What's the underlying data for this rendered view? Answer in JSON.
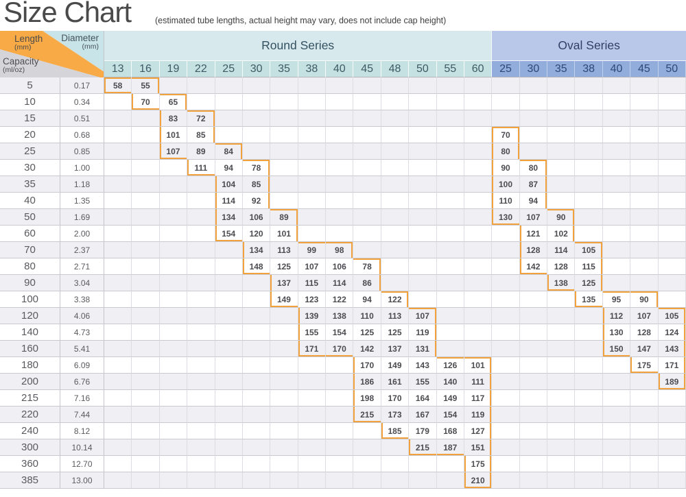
{
  "title": "Size Chart",
  "subtitle": "(estimated tube lengths, actual height may vary, does not include cap height)",
  "corner": {
    "length_label": "Length",
    "length_unit": "(mm)",
    "diameter_label": "Diameter",
    "diameter_unit": "(mm)",
    "capacity_label": "Capacity",
    "capacity_unit": "(ml/oz)"
  },
  "series": [
    {
      "name": "Round Series",
      "diameters": [
        "13",
        "16",
        "19",
        "22",
        "25",
        "30",
        "35",
        "38",
        "40",
        "45",
        "48",
        "50",
        "55",
        "60"
      ]
    },
    {
      "name": "Oval Series",
      "diameters": [
        "25",
        "30",
        "35",
        "38",
        "40",
        "45",
        "50"
      ]
    }
  ],
  "colors": {
    "outline": "#f2a23c",
    "corner_orange": "#f7aa45",
    "corner_cyan": "#c9e4e9",
    "corner_gray": "#d5d5d9"
  },
  "chart_data": {
    "type": "table",
    "title": "Size Chart",
    "note": "(estimated tube lengths, actual height may vary, does not include cap height)",
    "units": {
      "capacity": "ml/oz",
      "diameter": "mm",
      "length": "mm"
    },
    "rows": [
      {
        "ml": "5",
        "oz": "0.17",
        "round": {
          "13": 58,
          "16": 55
        },
        "oval": {}
      },
      {
        "ml": "10",
        "oz": "0.34",
        "round": {
          "16": 70,
          "19": 65
        },
        "oval": {}
      },
      {
        "ml": "15",
        "oz": "0.51",
        "round": {
          "19": 83,
          "22": 72
        },
        "oval": {}
      },
      {
        "ml": "20",
        "oz": "0.68",
        "round": {
          "19": 101,
          "22": 85
        },
        "oval": {
          "25": 70
        }
      },
      {
        "ml": "25",
        "oz": "0.85",
        "round": {
          "19": 107,
          "22": 89,
          "25": 84
        },
        "oval": {
          "25": 80
        }
      },
      {
        "ml": "30",
        "oz": "1.00",
        "round": {
          "22": 111,
          "25": 94,
          "30": 78
        },
        "oval": {
          "25": 90,
          "30": 80
        }
      },
      {
        "ml": "35",
        "oz": "1.18",
        "round": {
          "25": 104,
          "30": 85
        },
        "oval": {
          "25": 100,
          "30": 87
        }
      },
      {
        "ml": "40",
        "oz": "1.35",
        "round": {
          "25": 114,
          "30": 92
        },
        "oval": {
          "25": 110,
          "30": 94
        }
      },
      {
        "ml": "50",
        "oz": "1.69",
        "round": {
          "25": 134,
          "30": 106,
          "35": 89
        },
        "oval": {
          "25": 130,
          "30": 107,
          "35": 90
        }
      },
      {
        "ml": "60",
        "oz": "2.00",
        "round": {
          "25": 154,
          "30": 120,
          "35": 101
        },
        "oval": {
          "30": 121,
          "35": 102
        }
      },
      {
        "ml": "70",
        "oz": "2.37",
        "round": {
          "30": 134,
          "35": 113,
          "38": 99,
          "40": 98
        },
        "oval": {
          "30": 128,
          "35": 114,
          "38": 105
        }
      },
      {
        "ml": "80",
        "oz": "2.71",
        "round": {
          "30": 148,
          "35": 125,
          "38": 107,
          "40": 106,
          "45": 78
        },
        "oval": {
          "30": 142,
          "35": 128,
          "38": 115
        }
      },
      {
        "ml": "90",
        "oz": "3.04",
        "round": {
          "35": 137,
          "38": 115,
          "40": 114,
          "45": 86
        },
        "oval": {
          "35": 138,
          "38": 125
        }
      },
      {
        "ml": "100",
        "oz": "3.38",
        "round": {
          "35": 149,
          "38": 123,
          "40": 122,
          "45": 94,
          "48": 122
        },
        "oval": {
          "38": 135,
          "40": 95,
          "45": 90
        }
      },
      {
        "ml": "120",
        "oz": "4.06",
        "round": {
          "38": 139,
          "40": 138,
          "45": 110,
          "48": 113,
          "50": 107
        },
        "oval": {
          "40": 112,
          "45": 107,
          "50": 105
        }
      },
      {
        "ml": "140",
        "oz": "4.73",
        "round": {
          "38": 155,
          "40": 154,
          "45": 125,
          "48": 125,
          "50": 119
        },
        "oval": {
          "40": 130,
          "45": 128,
          "50": 124
        }
      },
      {
        "ml": "160",
        "oz": "5.41",
        "round": {
          "38": 171,
          "40": 170,
          "45": 142,
          "48": 137,
          "50": 131
        },
        "oval": {
          "40": 150,
          "45": 147,
          "50": 143
        }
      },
      {
        "ml": "180",
        "oz": "6.09",
        "round": {
          "45": 170,
          "48": 149,
          "50": 143,
          "55": 126,
          "60": 101
        },
        "oval": {
          "45": 175,
          "50": 171
        }
      },
      {
        "ml": "200",
        "oz": "6.76",
        "round": {
          "45": 186,
          "48": 161,
          "50": 155,
          "55": 140,
          "60": 111
        },
        "oval": {
          "50": 189
        }
      },
      {
        "ml": "215",
        "oz": "7.16",
        "round": {
          "45": 198,
          "48": 170,
          "50": 164,
          "55": 149,
          "60": 117
        },
        "oval": {}
      },
      {
        "ml": "220",
        "oz": "7.44",
        "round": {
          "45": 215,
          "48": 173,
          "50": 167,
          "55": 154,
          "60": 119
        },
        "oval": {}
      },
      {
        "ml": "240",
        "oz": "8.12",
        "round": {
          "48": 185,
          "50": 179,
          "55": 168,
          "60": 127
        },
        "oval": {}
      },
      {
        "ml": "300",
        "oz": "10.14",
        "round": {
          "50": 215,
          "55": 187,
          "60": 151
        },
        "oval": {}
      },
      {
        "ml": "360",
        "oz": "12.70",
        "round": {
          "60": 175
        },
        "oval": {}
      },
      {
        "ml": "385",
        "oz": "13.00",
        "round": {
          "60": 210
        },
        "oval": {}
      }
    ]
  }
}
